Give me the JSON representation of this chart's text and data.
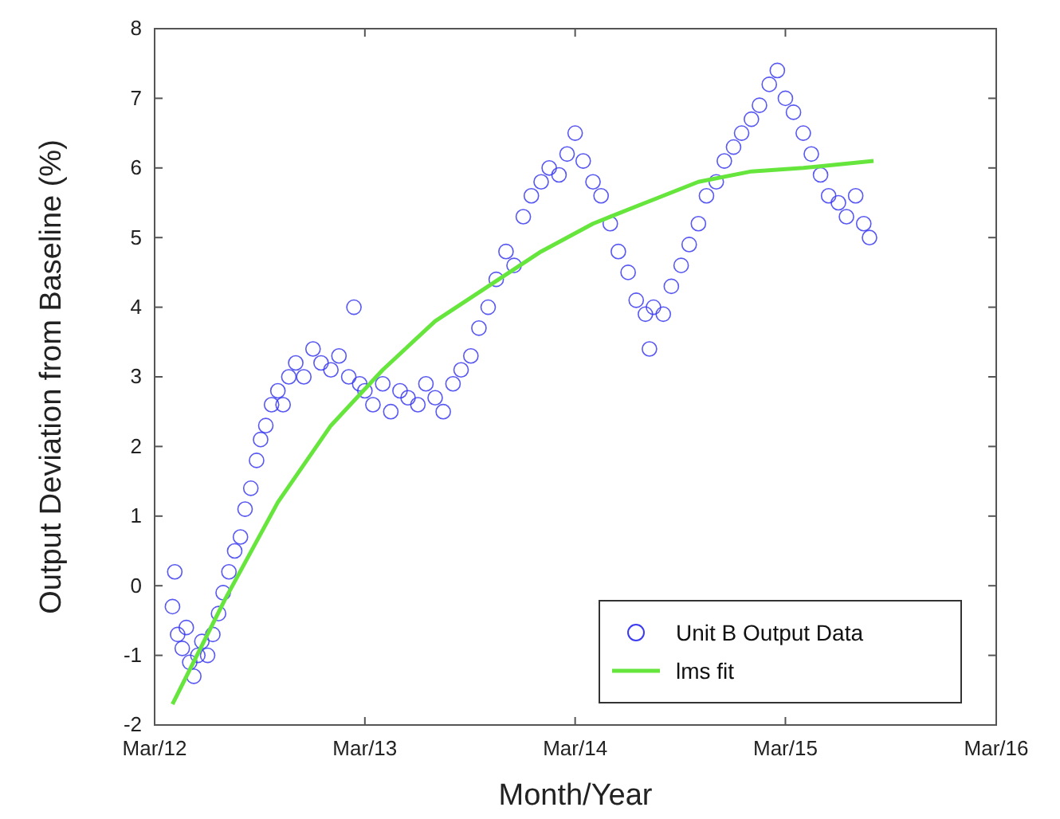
{
  "chart_data": {
    "type": "scatter",
    "xlabel": "Month/Year",
    "ylabel": "Output Deviation from Baseline (%)",
    "xlim": [
      "2012-03",
      "2016-03"
    ],
    "ylim": [
      -2,
      8
    ],
    "xticks": [
      {
        "value": "2012-03",
        "label": "Mar/12"
      },
      {
        "value": "2013-03",
        "label": "Mar/13"
      },
      {
        "value": "2014-03",
        "label": "Mar/14"
      },
      {
        "value": "2015-03",
        "label": "Mar/15"
      },
      {
        "value": "2016-03",
        "label": "Mar/16"
      }
    ],
    "yticks": [
      -2,
      -1,
      0,
      1,
      2,
      3,
      4,
      5,
      6,
      7,
      8
    ],
    "marker": "circle",
    "legend": "bottom right",
    "grid": false,
    "series": [
      {
        "name": "Unit B Output Data",
        "color": "#3b3bf0",
        "x": [
          "2012-04-01",
          "2012-04-05",
          "2012-04-10",
          "2012-04-18",
          "2012-04-25",
          "2012-05-01",
          "2012-05-08",
          "2012-05-15",
          "2012-05-22",
          "2012-06-01",
          "2012-06-10",
          "2012-06-20",
          "2012-06-28",
          "2012-07-08",
          "2012-07-18",
          "2012-07-28",
          "2012-08-05",
          "2012-08-15",
          "2012-08-25",
          "2012-09-01",
          "2012-09-10",
          "2012-09-20",
          "2012-10-01",
          "2012-10-10",
          "2012-10-20",
          "2012-11-01",
          "2012-11-15",
          "2012-12-01",
          "2012-12-15",
          "2013-01-01",
          "2013-01-15",
          "2013-02-01",
          "2013-02-10",
          "2013-02-20",
          "2013-03-01",
          "2013-03-15",
          "2013-04-01",
          "2013-04-15",
          "2013-05-01",
          "2013-05-15",
          "2013-06-01",
          "2013-06-15",
          "2013-07-01",
          "2013-07-15",
          "2013-08-01",
          "2013-08-15",
          "2013-09-01",
          "2013-09-15",
          "2013-10-01",
          "2013-10-15",
          "2013-11-01",
          "2013-11-15",
          "2013-12-01",
          "2013-12-15",
          "2014-01-01",
          "2014-01-15",
          "2014-02-01",
          "2014-02-15",
          "2014-03-01",
          "2014-03-15",
          "2014-04-01",
          "2014-04-15",
          "2014-05-01",
          "2014-05-15",
          "2014-06-01",
          "2014-06-15",
          "2014-07-01",
          "2014-07-08",
          "2014-07-15",
          "2014-08-01",
          "2014-08-15",
          "2014-09-01",
          "2014-09-15",
          "2014-10-01",
          "2014-10-15",
          "2014-11-01",
          "2014-11-15",
          "2014-12-01",
          "2014-12-15",
          "2015-01-01",
          "2015-01-15",
          "2015-02-01",
          "2015-02-15",
          "2015-03-01",
          "2015-03-15",
          "2015-04-01",
          "2015-04-15",
          "2015-05-01",
          "2015-05-15",
          "2015-06-01",
          "2015-06-15",
          "2015-07-01",
          "2015-07-15",
          "2015-07-25"
        ],
        "values": [
          -0.3,
          0.2,
          -0.7,
          -0.9,
          -0.6,
          -1.1,
          -1.3,
          -1.0,
          -0.8,
          -1.0,
          -0.7,
          -0.4,
          -0.1,
          0.2,
          0.5,
          0.7,
          1.1,
          1.4,
          1.8,
          2.1,
          2.3,
          2.6,
          2.8,
          2.6,
          3.0,
          3.2,
          3.0,
          3.4,
          3.2,
          3.1,
          3.3,
          3.0,
          4.0,
          2.9,
          2.8,
          2.6,
          2.9,
          2.5,
          2.8,
          2.7,
          2.6,
          2.9,
          2.7,
          2.5,
          2.9,
          3.1,
          3.3,
          3.7,
          4.0,
          4.4,
          4.8,
          4.6,
          5.3,
          5.6,
          5.8,
          6.0,
          5.9,
          6.2,
          6.5,
          6.1,
          5.8,
          5.6,
          5.2,
          4.8,
          4.5,
          4.1,
          3.9,
          3.4,
          4.0,
          3.9,
          4.3,
          4.6,
          4.9,
          5.2,
          5.6,
          5.8,
          6.1,
          6.3,
          6.5,
          6.7,
          6.9,
          7.2,
          7.4,
          7.0,
          6.8,
          6.5,
          6.2,
          5.9,
          5.6,
          5.5,
          5.3,
          5.6,
          5.2,
          5.0
        ]
      },
      {
        "name": "lms fit",
        "type": "line",
        "color": "#66e63c",
        "marker": "none",
        "line_style": "solid",
        "x": [
          "2012-04-01",
          "2012-07-01",
          "2012-10-01",
          "2013-01-01",
          "2013-04-01",
          "2013-07-01",
          "2013-10-01",
          "2014-01-01",
          "2014-04-01",
          "2014-07-01",
          "2014-10-01",
          "2015-01-01",
          "2015-04-01",
          "2015-08-01"
        ],
        "values": [
          -1.7,
          -0.2,
          1.2,
          2.3,
          3.1,
          3.8,
          4.3,
          4.8,
          5.2,
          5.5,
          5.8,
          5.95,
          6.0,
          6.1
        ]
      }
    ]
  }
}
